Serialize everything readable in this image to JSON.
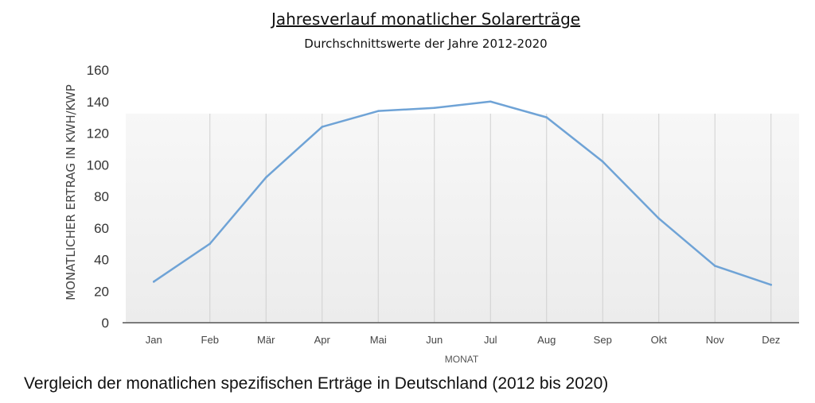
{
  "caption": "Vergleich der monatlichen spezifischen Erträge in Deutschland (2012 bis 2020)",
  "colors": {
    "line": "#6fa3d6",
    "axis": "#555555",
    "grid": "#d0d0d0"
  },
  "chart_data": {
    "type": "line",
    "title": "Jahresverlauf monatlicher Solarerträge",
    "subtitle": "Durchschnittswerte der Jahre 2012-2020",
    "xlabel": "MONAT",
    "ylabel": "MONATLICHER ERTRAG IN KWH/KWP",
    "categories": [
      "Jan",
      "Feb",
      "Mär",
      "Apr",
      "Mai",
      "Jun",
      "Jul",
      "Aug",
      "Sep",
      "Okt",
      "Nov",
      "Dez"
    ],
    "values": [
      26,
      50,
      92,
      124,
      134,
      136,
      140,
      130,
      102,
      66,
      36,
      24
    ],
    "ylim": [
      0,
      160
    ],
    "yticks": [
      0,
      20,
      40,
      60,
      80,
      100,
      120,
      140,
      160
    ],
    "grid": "vertical",
    "legend": "none"
  }
}
